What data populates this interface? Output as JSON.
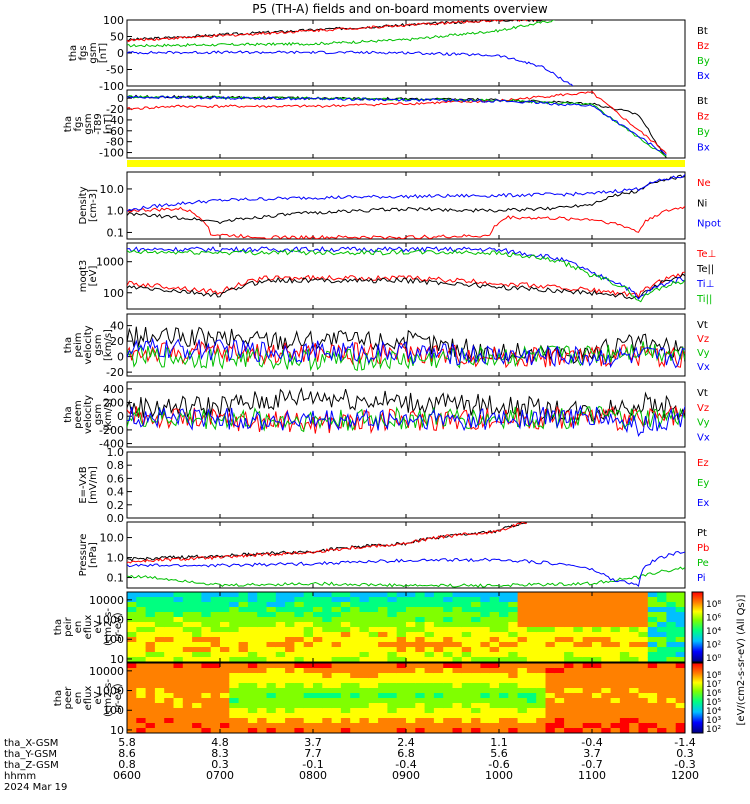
{
  "title": "P5 (TH-A) fields and on-board moments overview",
  "chart_data": {
    "type": "line",
    "time_axis": {
      "start": "0600",
      "end": "1200",
      "ticks": [
        "0600",
        "0700",
        "0800",
        "0900",
        "1000",
        "1100",
        "1200"
      ]
    },
    "panels": [
      {
        "id": "fgs",
        "ylabel": [
          "tha",
          "fgs",
          "gsm",
          "[nT]"
        ],
        "ylim": [
          -100,
          100
        ],
        "yticks": [
          "100",
          "50",
          "0",
          "-50",
          "-100"
        ],
        "series": [
          {
            "name": "Bt",
            "color": "#000000",
            "x": [
              0,
              1,
              2,
              3,
              4,
              4.5
            ],
            "y": [
              40,
              55,
              70,
              85,
              100,
              100
            ]
          },
          {
            "name": "Bz",
            "color": "#ff0000",
            "x": [
              0,
              1,
              2,
              3,
              4,
              4.5
            ],
            "y": [
              38,
              52,
              68,
              84,
              100,
              100
            ]
          },
          {
            "name": "By",
            "color": "#00c000",
            "x": [
              0,
              1,
              2,
              3,
              4,
              4.6
            ],
            "y": [
              22,
              25,
              28,
              40,
              68,
              100
            ]
          },
          {
            "name": "Bx",
            "color": "#0000ff",
            "x": [
              0,
              1,
              2,
              3,
              4,
              4.45,
              4.8
            ],
            "y": [
              1,
              2,
              2,
              1,
              -8,
              -40,
              -100
            ]
          }
        ]
      },
      {
        "id": "fgs_dev",
        "ylabel": [
          "tha",
          "fgs",
          "gsm",
          "-T89",
          "[nT]"
        ],
        "ylim": [
          -110,
          15
        ],
        "yticks": [
          "0",
          "-20",
          "-40",
          "-60",
          "-80",
          "-100"
        ],
        "series": [
          {
            "name": "Bt",
            "color": "#000000",
            "x": [
              0,
              2,
              4,
              5,
              5.5,
              5.8
            ],
            "y": [
              3,
              0,
              -3,
              -10,
              -30,
              -110
            ]
          },
          {
            "name": "Bz",
            "color": "#ff0000",
            "x": [
              0,
              0.5,
              2,
              4,
              4.6,
              5,
              5.8
            ],
            "y": [
              -20,
              -15,
              -15,
              -5,
              5,
              10,
              -100
            ]
          },
          {
            "name": "By",
            "color": "#00c000",
            "x": [
              0,
              2,
              4,
              5,
              5.8
            ],
            "y": [
              3,
              0,
              -4,
              -12,
              -108
            ]
          },
          {
            "name": "Bx",
            "color": "#0000ff",
            "x": [
              0,
              2,
              4,
              5,
              5.8
            ],
            "y": [
              2,
              -1,
              -5,
              -14,
              -104
            ]
          }
        ]
      },
      {
        "id": "density",
        "ylabel": [
          "Density",
          "[cm-3]"
        ],
        "yscale": "log",
        "ylim": [
          0.05,
          60
        ],
        "yticks": [
          "10.0",
          "1.0",
          "0.1"
        ],
        "series": [
          {
            "name": "Ne",
            "color": "#ff0000",
            "x": [
              0,
              0.6,
              0.9,
              1.5,
              3,
              3.9,
              4.1,
              5,
              5.5,
              6
            ],
            "y": [
              1.0,
              1.2,
              0.08,
              0.06,
              0.06,
              0.07,
              0.5,
              0.4,
              0.1,
              1.5
            ]
          },
          {
            "name": "Ni",
            "color": "#000000",
            "x": [
              0,
              1,
              2,
              3,
              3.9,
              4.5,
              5,
              5.5,
              6
            ],
            "y": [
              0.7,
              0.3,
              0.8,
              1.2,
              1.0,
              1.2,
              2.0,
              8,
              40
            ]
          },
          {
            "name": "Npot",
            "color": "#0000ff",
            "x": [
              0,
              1,
              2,
              3,
              4,
              5,
              5.5,
              6
            ],
            "y": [
              1.0,
              3.0,
              4.0,
              4.5,
              5.0,
              6.0,
              10,
              40
            ]
          }
        ]
      },
      {
        "id": "temperature",
        "ylabel": [
          "moqt3",
          "[eV]"
        ],
        "yscale": "log",
        "ylim": [
          30,
          4000
        ],
        "yticks": [
          "1000",
          "100"
        ],
        "series": [
          {
            "name": "Te⊥",
            "color": "#ff0000",
            "x": [
              0,
              1,
              1.5,
              3,
              4,
              5,
              5.5,
              6
            ],
            "y": [
              200,
              100,
              300,
              300,
              200,
              120,
              80,
              400
            ]
          },
          {
            "name": "Te||",
            "color": "#000000",
            "x": [
              0,
              1,
              1.5,
              3,
              4,
              5,
              5.5,
              6
            ],
            "y": [
              150,
              80,
              250,
              250,
              150,
              100,
              70,
              350
            ]
          },
          {
            "name": "Ti⊥",
            "color": "#0000ff",
            "x": [
              0,
              3.9,
              4.5,
              5,
              5.5,
              6
            ],
            "y": [
              2500,
              2500,
              1500,
              400,
              60,
              300
            ]
          },
          {
            "name": "Ti||",
            "color": "#00c000",
            "x": [
              0,
              3.9,
              4.5,
              5,
              5.5,
              6
            ],
            "y": [
              2000,
              2000,
              1200,
              350,
              50,
              250
            ]
          }
        ]
      },
      {
        "id": "peim_vel",
        "ylabel": [
          "tha",
          "peim",
          "velocity",
          "gsm",
          "[km/s]"
        ],
        "ylim": [
          -25,
          55
        ],
        "yticks": [
          "40",
          "20",
          "0",
          "-20"
        ],
        "series": [
          {
            "name": "Vt",
            "color": "#000000",
            "x": [
              0,
              3,
              4,
              5,
              5.5,
              6
            ],
            "y": [
              25,
              20,
              5,
              5,
              18,
              5
            ]
          },
          {
            "name": "Vz",
            "color": "#ff0000",
            "x": [
              0,
              3,
              4,
              5,
              5.5,
              6
            ],
            "y": [
              5,
              5,
              0,
              0,
              2,
              0
            ]
          },
          {
            "name": "Vy",
            "color": "#00c000",
            "x": [
              0,
              3,
              4,
              5,
              5.5,
              6
            ],
            "y": [
              0,
              -5,
              0,
              2,
              10,
              3
            ]
          },
          {
            "name": "Vx",
            "color": "#0000ff",
            "x": [
              0,
              3,
              4,
              5,
              5.5,
              6
            ],
            "y": [
              10,
              5,
              2,
              0,
              0,
              0
            ]
          }
        ]
      },
      {
        "id": "peem_vel",
        "ylabel": [
          "tha",
          "peem",
          "velocity",
          "gsm",
          "[km/s]"
        ],
        "ylim": [
          -450,
          500
        ],
        "yticks": [
          "400",
          "200",
          "0",
          "-200",
          "-400"
        ],
        "series": [
          {
            "name": "Vt",
            "color": "#000000",
            "x": [
              0,
              1,
              2,
              3,
              4,
              5,
              5.5,
              6
            ],
            "y": [
              120,
              150,
              300,
              200,
              150,
              60,
              200,
              80
            ]
          },
          {
            "name": "Vz",
            "color": "#ff0000",
            "x": [
              0,
              1,
              2,
              3,
              4,
              5,
              5.5,
              6
            ],
            "y": [
              0,
              -50,
              -100,
              -50,
              -40,
              -10,
              -60,
              -10
            ]
          },
          {
            "name": "Vy",
            "color": "#00c000",
            "x": [
              0,
              1,
              2,
              3,
              4,
              5,
              5.5,
              6
            ],
            "y": [
              -20,
              -40,
              -60,
              -40,
              -30,
              -10,
              -40,
              -10
            ]
          },
          {
            "name": "Vx",
            "color": "#0000ff",
            "x": [
              0,
              1,
              2,
              3,
              4,
              5,
              5.5,
              6
            ],
            "y": [
              -10,
              -30,
              -80,
              -60,
              -40,
              -10,
              -150,
              -20
            ]
          }
        ]
      },
      {
        "id": "efield",
        "ylabel": [
          "E=-VxB",
          "[mV/m]"
        ],
        "ylim": [
          0,
          1
        ],
        "yticks": [
          "1.0",
          "0.8",
          "0.6",
          "0.4",
          "0.2",
          "0.0"
        ],
        "series": [
          {
            "name": "Ez",
            "color": "#ff0000",
            "x": [],
            "y": []
          },
          {
            "name": "Ey",
            "color": "#00c000",
            "x": [],
            "y": []
          },
          {
            "name": "Ex",
            "color": "#0000ff",
            "x": [],
            "y": []
          }
        ]
      },
      {
        "id": "pressure",
        "ylabel": [
          "Pressure",
          "[nPa]"
        ],
        "yscale": "log",
        "ylim": [
          0.03,
          60
        ],
        "yticks": [
          "10.0",
          "1.0",
          "0.1"
        ],
        "series": [
          {
            "name": "Pt",
            "color": "#000000",
            "x": [
              0,
              1,
              2,
              3,
              4,
              4.3
            ],
            "y": [
              0.8,
              1.2,
              2.0,
              5.0,
              20,
              60
            ]
          },
          {
            "name": "Pb",
            "color": "#ff0000",
            "x": [
              0,
              1,
              2,
              3,
              4,
              4.3
            ],
            "y": [
              0.6,
              1.0,
              1.8,
              4.8,
              20,
              60
            ]
          },
          {
            "name": "Pe",
            "color": "#00c000",
            "x": [
              0,
              0.5,
              1,
              2,
              3,
              4,
              5,
              5.5,
              6
            ],
            "y": [
              0.12,
              0.08,
              0.04,
              0.05,
              0.04,
              0.04,
              0.05,
              0.1,
              0.3
            ]
          },
          {
            "name": "Pi",
            "color": "#0000ff",
            "x": [
              0,
              1,
              2,
              3,
              4,
              4.8,
              5.2,
              5.5,
              6
            ],
            "y": [
              0.4,
              0.4,
              0.5,
              0.7,
              0.8,
              0.4,
              0.08,
              0.04,
              2.0
            ]
          }
        ]
      }
    ],
    "spectrograms": [
      {
        "id": "peir",
        "ylabel": [
          "tha",
          "peir",
          "en",
          "eflux",
          "eV",
          "(cm2-s-",
          "sr-eV)"
        ],
        "yscale": "log",
        "ylim": [
          7,
          25000
        ],
        "yticks": [
          "10000",
          "1000",
          "100",
          "10"
        ],
        "colorbar_ticks": [
          "10⁸",
          "10⁶",
          "10⁴",
          "10²",
          "10⁰"
        ]
      },
      {
        "id": "peer",
        "ylabel": [
          "tha",
          "peer",
          "en",
          "eflux",
          "eV",
          "(cm2-s-",
          "sr-eV)"
        ],
        "yscale": "log",
        "ylim": [
          7,
          25000
        ],
        "yticks": [
          "10000",
          "1000",
          "100",
          "10"
        ],
        "colorbar_ticks": [
          "10⁸",
          "10⁷",
          "10⁶",
          "10⁵",
          "10⁴",
          "10³",
          "10²"
        ]
      }
    ],
    "colorbar_label": "[eV/(cm2-s-sr-eV) (All Qs)]",
    "extra_axes": [
      {
        "label": "tha_X-GSM",
        "values": [
          "5.8",
          "4.8",
          "3.7",
          "2.4",
          "1.1",
          "-0.4",
          "-1.4"
        ]
      },
      {
        "label": "tha_Y-GSM",
        "values": [
          "8.6",
          "8.3",
          "7.7",
          "6.8",
          "5.6",
          "3.7",
          "0.3"
        ]
      },
      {
        "label": "tha_Z-GSM",
        "values": [
          "0.8",
          "0.3",
          "-0.1",
          "-0.4",
          "-0.6",
          "-0.7",
          "-0.3"
        ]
      },
      {
        "label": "hhmm",
        "values": [
          "0600",
          "0700",
          "0800",
          "0900",
          "1000",
          "1100",
          "1200"
        ]
      }
    ],
    "date": "2024 Mar 19"
  }
}
